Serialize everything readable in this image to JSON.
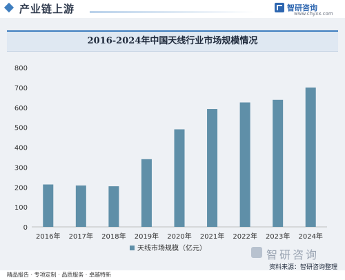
{
  "header": {
    "section_title": "产业链上游"
  },
  "brand": {
    "name": "智研咨询",
    "url": "www.chyxx.com"
  },
  "chart_data": {
    "type": "bar",
    "title": "2016-2024年中国天线行业市场规模情况",
    "categories": [
      "2016年",
      "2017年",
      "2018年",
      "2019年",
      "2020年",
      "2021年",
      "2022年",
      "2023年",
      "2024年"
    ],
    "series": [
      {
        "name": "天线市场规模（亿元）",
        "values": [
          213,
          208,
          204,
          340,
          490,
          592,
          625,
          638,
          700
        ]
      }
    ],
    "ylim": [
      0,
      800
    ],
    "yticks": [
      0,
      100,
      200,
      300,
      400,
      500,
      600,
      700,
      800
    ],
    "bar_color": "#5f8fa8",
    "grid": false,
    "legend": "bottom"
  },
  "source": {
    "logo_text": "智研咨询",
    "note": "资料来源：智研咨询整理"
  },
  "footer": {
    "text": "精品报告 · 专项定制 · 品质服务 · 卓越特新"
  }
}
